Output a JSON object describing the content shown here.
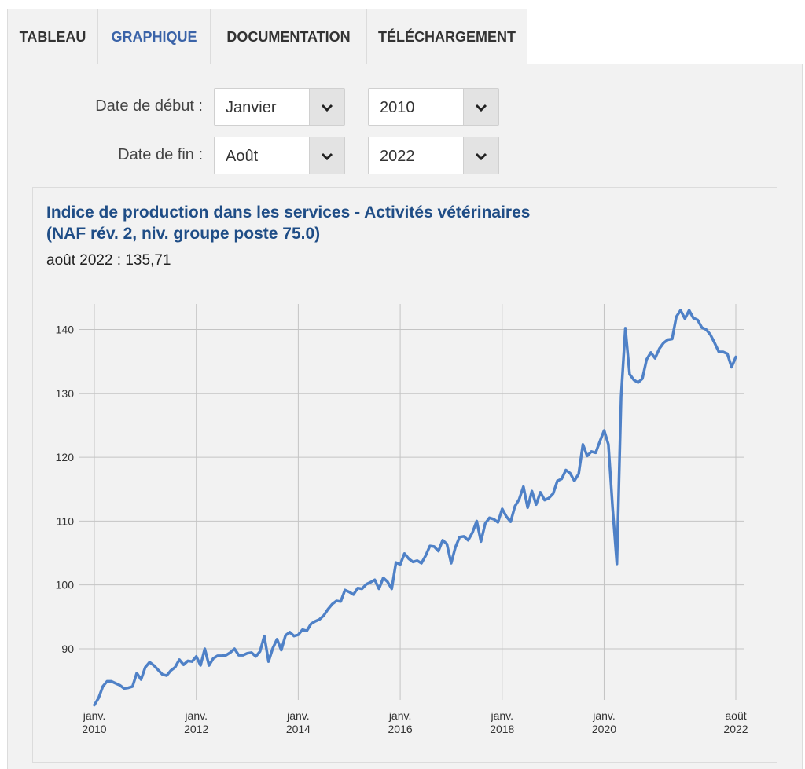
{
  "tabs": [
    {
      "label": "TABLEAU"
    },
    {
      "label": "GRAPHIQUE"
    },
    {
      "label": "DOCUMENTATION"
    },
    {
      "label": "TÉLÉCHARGEMENT"
    }
  ],
  "filters": {
    "start_label": "Date de début :",
    "start_month": "Janvier",
    "start_year": "2010",
    "end_label": "Date de fin :",
    "end_month": "Août",
    "end_year": "2022"
  },
  "colors": {
    "accent": "#3a63a8",
    "title": "#1f4d86",
    "line": "#4f81c7"
  },
  "chart": {
    "title_line1": "Indice de production dans les services - Activités vétérinaires",
    "title_line2": "(NAF rév. 2, niv. groupe poste 75.0)",
    "subtitle": "août 2022 : 135,71"
  },
  "chart_data": {
    "type": "line",
    "title": "Indice de production dans les services - Activités vétérinaires (NAF rév. 2, niv. groupe poste 75.0)",
    "ylim": [
      82,
      144
    ],
    "yticks": [
      90,
      100,
      110,
      120,
      130,
      140
    ],
    "grid": true,
    "xticks": [
      {
        "date": "2010-01",
        "line1": "janv.",
        "line2": "2010"
      },
      {
        "date": "2012-01",
        "line1": "janv.",
        "line2": "2012"
      },
      {
        "date": "2014-01",
        "line1": "janv.",
        "line2": "2014"
      },
      {
        "date": "2016-01",
        "line1": "janv.",
        "line2": "2016"
      },
      {
        "date": "2018-01",
        "line1": "janv.",
        "line2": "2018"
      },
      {
        "date": "2020-01",
        "line1": "janv.",
        "line2": "2020"
      },
      {
        "date": "2022-08",
        "line1": "août",
        "line2": "2022"
      }
    ],
    "start": "2010-01",
    "end": "2022-08",
    "series": [
      {
        "values": [
          81.2,
          82.3,
          84.1,
          84.9,
          84.9,
          84.6,
          84.3,
          83.8,
          83.9,
          84.1,
          86.2,
          85.2,
          87.1,
          87.9,
          87.4,
          86.7,
          86.0,
          85.8,
          86.6,
          87.1,
          88.3,
          87.5,
          88.1,
          88.0,
          88.8,
          87.4,
          90.0,
          87.4,
          88.5,
          88.9,
          88.9,
          89.0,
          89.4,
          90.0,
          89.0,
          89.0,
          89.3,
          89.4,
          88.8,
          89.6,
          92.0,
          88.0,
          90.1,
          91.5,
          89.8,
          92.1,
          92.6,
          92.0,
          92.2,
          93.0,
          92.8,
          93.9,
          94.3,
          94.6,
          95.2,
          96.2,
          97.0,
          97.5,
          97.4,
          99.2,
          98.9,
          98.5,
          99.5,
          99.4,
          100.1,
          100.4,
          100.8,
          99.4,
          101.1,
          100.5,
          99.4,
          103.5,
          103.2,
          104.9,
          104.1,
          103.6,
          103.8,
          103.4,
          104.6,
          106.1,
          106.0,
          105.3,
          107.0,
          106.4,
          103.4,
          105.9,
          107.5,
          107.6,
          107.0,
          108.2,
          110.0,
          106.8,
          109.6,
          110.5,
          110.3,
          109.8,
          111.9,
          110.7,
          109.9,
          112.3,
          113.4,
          115.4,
          112.1,
          114.7,
          112.6,
          114.5,
          113.3,
          113.6,
          114.3,
          116.3,
          116.6,
          118.0,
          117.5,
          116.3,
          117.4,
          122.0,
          120.2,
          120.9,
          120.7,
          122.5,
          124.2,
          122.0,
          112.0,
          103.3,
          129.5,
          140.2,
          133.0,
          132.1,
          131.7,
          132.3,
          135.3,
          136.4,
          135.5,
          137.0,
          137.9,
          138.4,
          138.5,
          142.0,
          143.0,
          141.7,
          143.0,
          141.8,
          141.5,
          140.3,
          140.0,
          139.2,
          137.9,
          136.5,
          136.5,
          136.2,
          134.1,
          135.7
        ]
      }
    ]
  }
}
